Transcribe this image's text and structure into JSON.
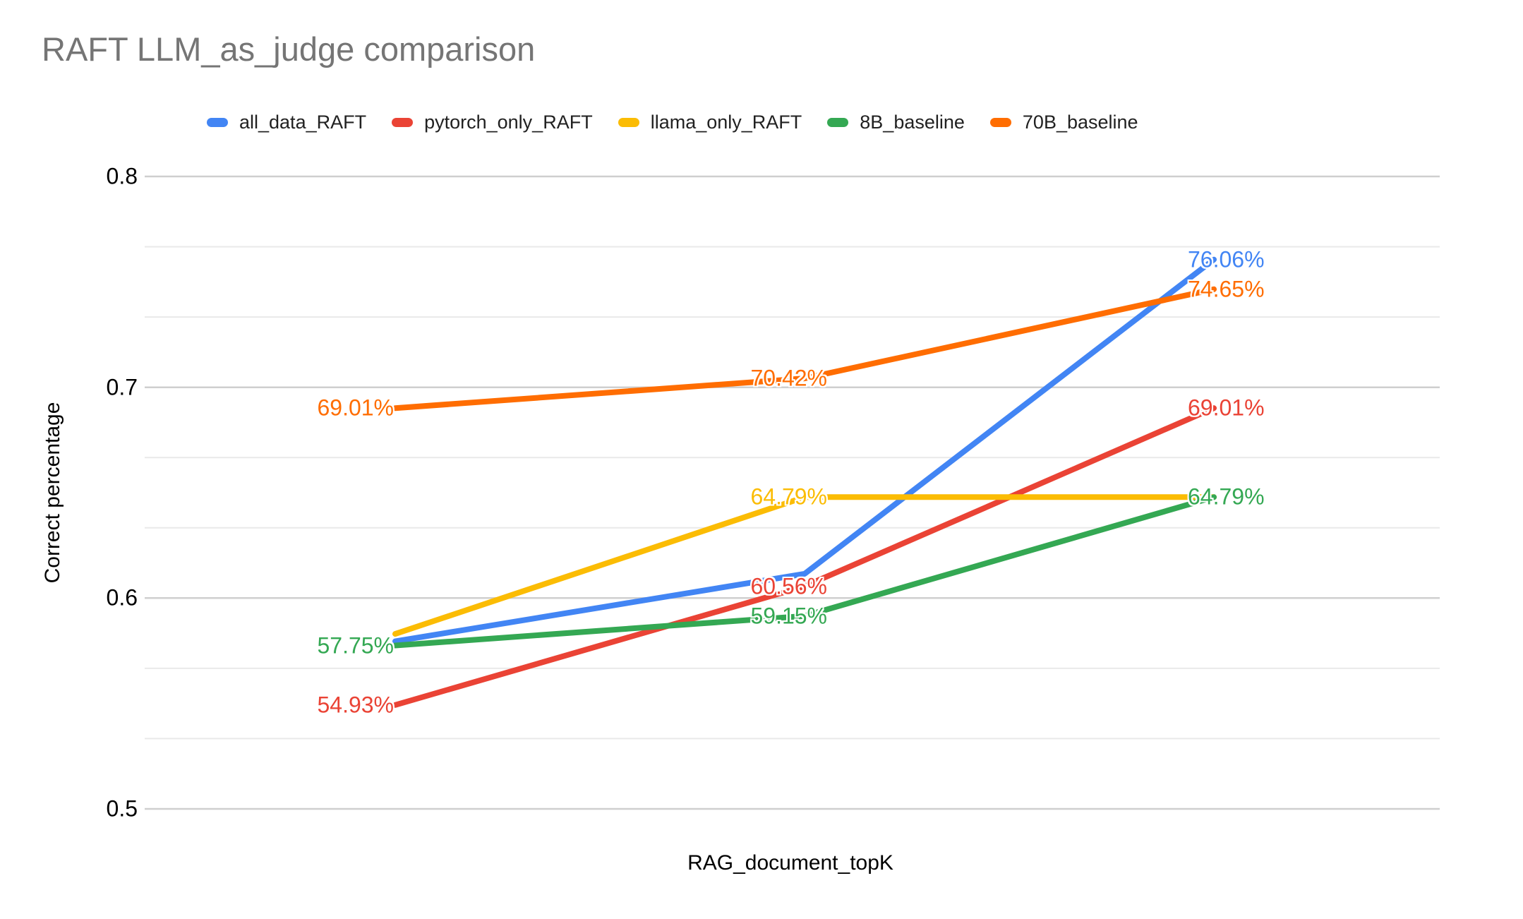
{
  "chart": {
    "title": "RAFT LLM_as_judge comparison",
    "ylabel": "Correct percentage",
    "xlabel": "RAG_document_topK"
  },
  "chart_data": {
    "type": "line",
    "title": "RAFT LLM_as_judge comparison",
    "xlabel": "RAG_document_topK",
    "ylabel": "Correct percentage",
    "x_tick_labels_visible": false,
    "num_x_positions": 3,
    "ylim": [
      0.5,
      0.8
    ],
    "y_axis": {
      "ticks": [
        {
          "label": "0.8",
          "value": 0.8
        },
        {
          "label": "0.7",
          "value": 0.7
        },
        {
          "label": "0.6",
          "value": 0.6
        },
        {
          "label": "0.5",
          "value": 0.5
        }
      ],
      "minor_gridlines_between_majors": 2
    },
    "grid": true,
    "legend_position": "top",
    "series": [
      {
        "name": "all_data_RAFT",
        "color": "#4285F4",
        "values": [
          0.5795,
          0.6115,
          0.7606
        ],
        "labels": [
          "",
          "",
          "76.06%"
        ]
      },
      {
        "name": "pytorch_only_RAFT",
        "color": "#EA4335",
        "values": [
          0.5493,
          0.6056,
          0.6901
        ],
        "labels": [
          "54.93%",
          "60.56%",
          "69.01%"
        ]
      },
      {
        "name": "llama_only_RAFT",
        "color": "#FBBC04",
        "values": [
          0.583,
          0.6479,
          0.6479
        ],
        "labels": [
          "",
          "64.79%",
          ""
        ]
      },
      {
        "name": "8B_baseline",
        "color": "#34A853",
        "values": [
          0.5775,
          0.5915,
          0.6479
        ],
        "labels": [
          "57.75%",
          "59.15%",
          "64.79%"
        ]
      },
      {
        "name": "70B_baseline",
        "color": "#FF6D01",
        "values": [
          0.6901,
          0.7042,
          0.7465
        ],
        "labels": [
          "69.01%",
          "70.42%",
          "74.65%"
        ]
      }
    ],
    "colors": {
      "title_text": "#757575",
      "axis_text": "#000000",
      "major_gridline": "#cfcfcf",
      "minor_gridline": "#e9e9e9",
      "background": "#ffffff"
    }
  }
}
